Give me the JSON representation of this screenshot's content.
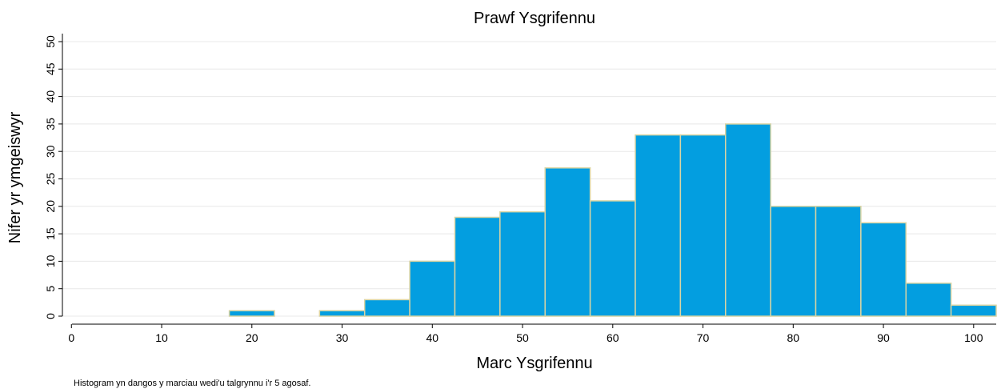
{
  "chart_data": {
    "type": "histogram",
    "title": "Prawf Ysgrifennu",
    "xlabel": "Marc Ysgrifennu",
    "ylabel": "Nifer yr ymgeiswyr",
    "caption": "Histogram yn dangos y marciau wedi'u talgrynnu i'r 5 agosaf.",
    "bins": [
      17.5,
      22.5,
      27.5,
      32.5,
      37.5,
      42.5,
      47.5,
      52.5,
      57.5,
      62.5,
      67.5,
      72.5,
      77.5,
      82.5,
      87.5,
      92.5,
      97.5,
      102.5
    ],
    "values": [
      1,
      0,
      1,
      3,
      10,
      18,
      19,
      27,
      21,
      33,
      33,
      35,
      20,
      20,
      17,
      6,
      2
    ],
    "color": "#039ee0",
    "edgecolor": "#d9d4a3",
    "xlim": [
      -1,
      102.5
    ],
    "ylim": [
      0,
      50
    ],
    "xticks": [
      0,
      10,
      20,
      30,
      40,
      50,
      60,
      70,
      80,
      90,
      100
    ],
    "yticks": [
      0,
      5,
      10,
      15,
      20,
      25,
      30,
      35,
      40,
      45,
      50
    ],
    "grid": true
  }
}
